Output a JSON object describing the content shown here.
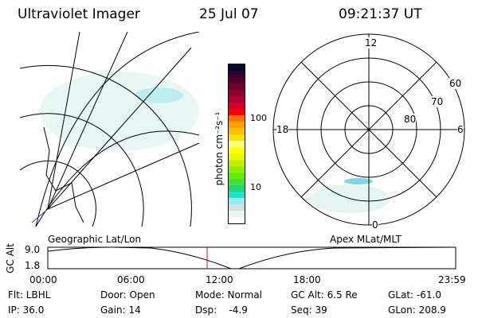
{
  "header": {
    "title": "Ultraviolet Imager",
    "date": "25 Jul 07",
    "time": "09:21:37 UT"
  },
  "colorbar": {
    "unit_label": "photon cm⁻²s⁻¹",
    "ticks": [
      "100",
      "10"
    ],
    "colors": [
      "#000a30",
      "#300030",
      "#500028",
      "#700030",
      "#900030",
      "#b00030",
      "#d00030",
      "#ff0000",
      "#ff7000",
      "#ffa000",
      "#ffc000",
      "#ffe000",
      "#ffff80",
      "#ffff00",
      "#e8f800",
      "#c0f000",
      "#90f000",
      "#60f000",
      "#40e040",
      "#20d870",
      "#20e0d0",
      "#90f0f0",
      "#d0e0e0",
      "#e8f4ec",
      "#ffffff"
    ]
  },
  "polar": {
    "labels": {
      "top": "12",
      "bottom": "0",
      "left": "18",
      "right": "6"
    },
    "lat_labels": [
      "60",
      "70",
      "80"
    ]
  },
  "altplot": {
    "left_title": "Geographic Lat/Lon",
    "right_title": "Apex MLat/MLT",
    "ylabel": "GC Alt",
    "yticks": [
      "9.0",
      "1.8"
    ],
    "xticks": [
      "00:00",
      "06:00",
      "12:00",
      "18:00",
      "23:59"
    ]
  },
  "info": {
    "flt": "Flt: LBHL",
    "ip": "IP: 36.0",
    "door": "Door: Open",
    "gain": "Gain: 14",
    "mode": "Mode: Normal",
    "dsp": "Dsp:    -4.9",
    "gcalt": "GC Alt: 6.5 Re",
    "seq": "Seq: 39",
    "glat": "GLat: -61.0",
    "glon": "GLon: 208.9"
  },
  "colors": {
    "marker": "#ff0000",
    "aurora": "#40e0e0"
  }
}
